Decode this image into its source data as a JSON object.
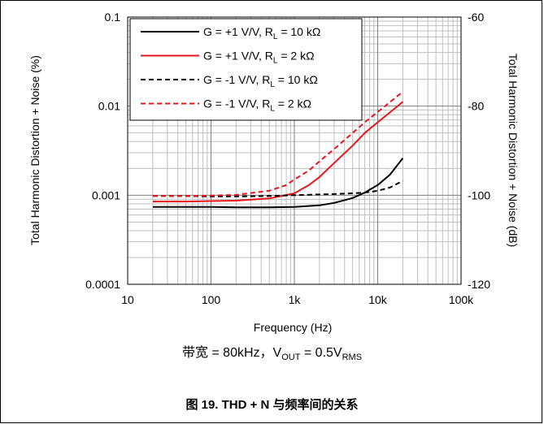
{
  "chart_data": {
    "type": "line",
    "xlabel": "Frequency (Hz)",
    "ylabel": "Total Harmonic Distortion + Noise (%)",
    "ylabel_right": "Total Harmonic Distortion + Noise (dB)",
    "x_scale": "log",
    "y_scale": "log",
    "xlim": [
      10,
      100000
    ],
    "ylim": [
      0.0001,
      0.1
    ],
    "ylim_right": [
      -120,
      -60
    ],
    "x_ticks": [
      "10",
      "100",
      "1k",
      "10k",
      "100k"
    ],
    "y_ticks": [
      "0.0001",
      "0.001",
      "0.01",
      "0.1"
    ],
    "y_ticks_right": [
      "-120",
      "-100",
      "-80",
      "-60"
    ],
    "grid": true,
    "legend_position": "top-left",
    "series": [
      {
        "name": "G = +1 V/V, R_L = 10 kΩ",
        "label_main": "G = +1 V/V, R",
        "label_sub": "L",
        "label_tail": " = 10 kΩ",
        "color": "#000000",
        "dash": "solid",
        "x": [
          20,
          50,
          100,
          200,
          500,
          1000,
          2000,
          3000,
          5000,
          7000,
          10000,
          14000,
          20000
        ],
        "y": [
          0.00074,
          0.00074,
          0.00074,
          0.00073,
          0.00073,
          0.00074,
          0.00077,
          0.00082,
          0.00093,
          0.00107,
          0.0013,
          0.0017,
          0.0026
        ]
      },
      {
        "name": "G = +1 V/V, R_L = 2 kΩ",
        "label_main": "G = +1 V/V, R",
        "label_sub": "L",
        "label_tail": " = 2 kΩ",
        "color": "#e8151b",
        "dash": "solid",
        "x": [
          20,
          50,
          100,
          200,
          500,
          1000,
          1500,
          2000,
          3000,
          5000,
          7000,
          10000,
          14000,
          20000
        ],
        "y": [
          0.00085,
          0.00085,
          0.00086,
          0.00087,
          0.00092,
          0.00105,
          0.0013,
          0.0016,
          0.0023,
          0.0036,
          0.005,
          0.0066,
          0.0085,
          0.0112
        ]
      },
      {
        "name": "G = -1 V/V, R_L = 10 kΩ",
        "label_main": "G = -1 V/V, R",
        "label_sub": "L",
        "label_tail": " = 10 kΩ",
        "color": "#000000",
        "dash": "dash",
        "x": [
          20,
          50,
          100,
          200,
          500,
          1000,
          2000,
          3000,
          5000,
          7000,
          10000,
          14000,
          20000
        ],
        "y": [
          0.00098,
          0.00098,
          0.00097,
          0.00097,
          0.00098,
          0.001,
          0.00102,
          0.00103,
          0.00105,
          0.00107,
          0.00112,
          0.00122,
          0.00145
        ]
      },
      {
        "name": "G = -1 V/V, R_L = 2 kΩ",
        "label_main": "G = -1 V/V, R",
        "label_sub": "L",
        "label_tail": " = 2 kΩ",
        "color": "#e8151b",
        "dash": "dash",
        "x": [
          20,
          50,
          100,
          200,
          500,
          800,
          1000,
          1500,
          2000,
          3000,
          5000,
          7000,
          10000,
          14000,
          20000
        ],
        "y": [
          0.00098,
          0.00098,
          0.00099,
          0.00101,
          0.00112,
          0.0013,
          0.0015,
          0.0019,
          0.0024,
          0.0033,
          0.005,
          0.0066,
          0.0086,
          0.0111,
          0.0145
        ]
      }
    ]
  },
  "caption": {
    "prefix": "带宽 = 80kHz，V",
    "sub1": "OUT",
    "mid": " = 0.5V",
    "sub2": "RMS"
  },
  "figure_title": "图 19. THD + N 与频率间的关系"
}
